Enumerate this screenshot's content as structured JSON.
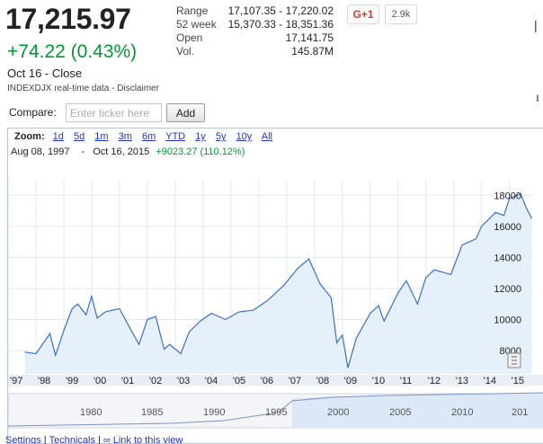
{
  "quote": {
    "price": "17,215.97",
    "change": "+74.22 (0.43%)",
    "close": "Oct 16 - Close",
    "source": "INDEXDJX real-time data - Disclaimer"
  },
  "stats": [
    {
      "label": "Range",
      "value": "17,107.35 - 17,220.02"
    },
    {
      "label": "52 week",
      "value": "15,370.33 - 18,351.36"
    },
    {
      "label": "Open",
      "value": "17,141.75"
    },
    {
      "label": "Vol.",
      "value": "145.87M"
    }
  ],
  "social": {
    "plus_label": "G+1",
    "count": "2.9k"
  },
  "compare": {
    "label": "Compare:",
    "placeholder": "Enter ticker here",
    "add_label": "Add"
  },
  "zoom": {
    "label": "Zoom:",
    "options": [
      "1d",
      "5d",
      "1m",
      "3m",
      "6m",
      "YTD",
      "1y",
      "5y",
      "10y",
      "All"
    ]
  },
  "range": {
    "start": "Aug 08, 1997",
    "dash": "-",
    "end": "Oct 16, 2015",
    "gain": "+9023.27 (110.12%)"
  },
  "colors": {
    "line": "#3c6fc9",
    "fill": "#e6f0fb",
    "grid": "#e3e8ef",
    "positive": "#009933",
    "link": "#2233cc"
  },
  "chart_data": {
    "type": "area",
    "ylim": [
      6500,
      19000
    ],
    "y_ticks": [
      8000,
      10000,
      12000,
      14000,
      16000,
      18000
    ],
    "y_tick_labels": [
      "8000",
      "10000",
      "12000",
      "14000",
      "16000",
      "18000"
    ],
    "x_tick_labels": [
      "'97",
      "'98",
      "'99",
      "'00",
      "'01",
      "'02",
      "'03",
      "'04",
      "'05",
      "'06",
      "'07",
      "'08",
      "'09",
      "'10",
      "'11",
      "'12",
      "'13",
      "'14",
      "'15"
    ],
    "x": [
      1997.6,
      1998.0,
      1998.5,
      1998.7,
      1999.0,
      1999.3,
      1999.5,
      1999.8,
      2000.0,
      2000.2,
      2000.5,
      2001.0,
      2001.3,
      2001.7,
      2002.0,
      2002.3,
      2002.6,
      2002.8,
      2003.2,
      2003.5,
      2003.9,
      2004.3,
      2004.8,
      2005.3,
      2005.8,
      2006.3,
      2006.9,
      2007.4,
      2007.8,
      2008.2,
      2008.6,
      2008.8,
      2009.0,
      2009.2,
      2009.5,
      2010.0,
      2010.3,
      2010.5,
      2011.0,
      2011.3,
      2011.7,
      2012.0,
      2012.3,
      2012.9,
      2013.3,
      2013.8,
      2014.0,
      2014.5,
      2014.8,
      2015.0,
      2015.4,
      2015.6,
      2015.8
    ],
    "values": [
      7900,
      7800,
      9100,
      7700,
      9300,
      10700,
      11000,
      10300,
      11500,
      10100,
      10500,
      10700,
      9700,
      8400,
      10000,
      10200,
      8100,
      8400,
      7800,
      9200,
      9900,
      10400,
      10000,
      10500,
      10600,
      11200,
      12200,
      13300,
      13900,
      12300,
      11400,
      8500,
      9000,
      6900,
      8800,
      10400,
      10900,
      9900,
      11700,
      12500,
      11000,
      12700,
      13200,
      12900,
      14800,
      15200,
      16000,
      16900,
      16700,
      17800,
      18100,
      17200,
      16500
    ]
  },
  "navigator": {
    "labels": [
      "1980",
      "1985",
      "1990",
      "1995",
      "2000",
      "2005",
      "2010",
      "201"
    ]
  },
  "links": {
    "settings": "Settings",
    "technicals": "Technicals",
    "link_view": "Link to this view",
    "sep": "|"
  }
}
